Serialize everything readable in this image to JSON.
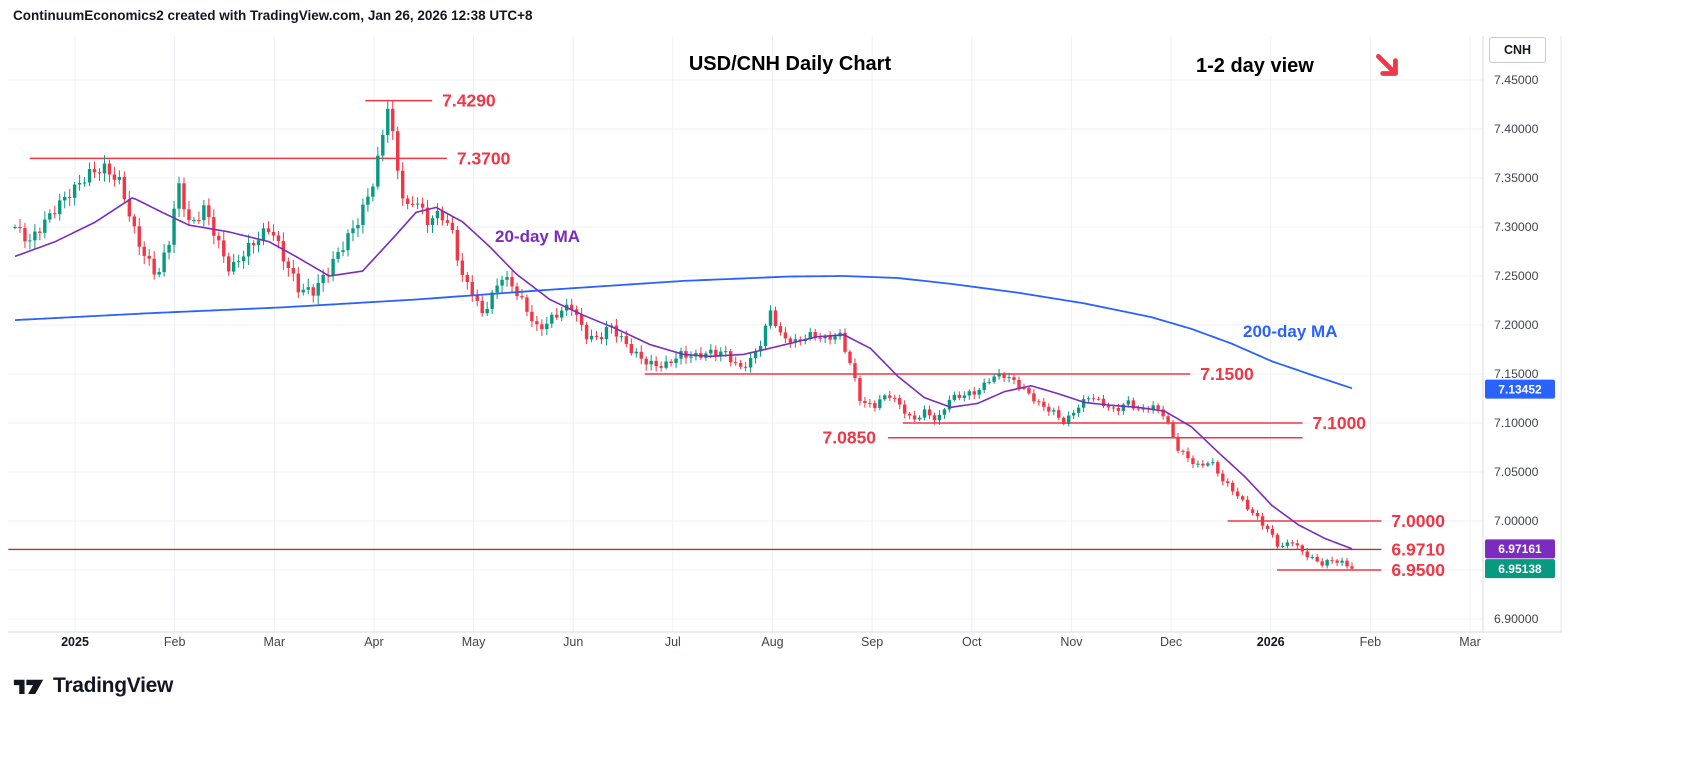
{
  "header": {
    "attribution": "ContinuumEconomics2 created with TradingView.com, Jan 26, 2026 12:38 UTC+8"
  },
  "chart": {
    "title": "USD/CNH Daily Chart",
    "view_note": "1-2 day view",
    "symbol_button": "CNH",
    "ma20_label": "20-day MA",
    "ma200_label": "200-day MA"
  },
  "footer": {
    "logo_text": "TradingView"
  },
  "price_scale": {
    "ticks": [
      "7.45000",
      "7.40000",
      "7.35000",
      "7.30000",
      "7.25000",
      "7.20000",
      "7.15000",
      "7.10000",
      "7.05000",
      "7.00000",
      "6.95000",
      "6.90000"
    ],
    "badges": [
      {
        "label": "7.13452",
        "price": 7.13452,
        "color": "#2962ff"
      },
      {
        "label": "6.97161",
        "price": 6.97161,
        "color": "#7b2cbf"
      },
      {
        "label": "6.95138",
        "price": 6.95138,
        "color": "#089981"
      }
    ]
  },
  "chart_data": {
    "type": "candlestick",
    "symbol": "USD/CNH",
    "timeframe": "Daily",
    "title": "USD/CNH Daily Chart",
    "x_axis_labels": [
      "2025",
      "Feb",
      "Mar",
      "Apr",
      "May",
      "Jun",
      "Jul",
      "Aug",
      "Sep",
      "Oct",
      "Nov",
      "Dec",
      "2026",
      "Feb",
      "Mar"
    ],
    "y_axis": {
      "min": 6.9,
      "max": 7.45,
      "tick_step": 0.05
    },
    "last_close": 6.95138,
    "ma20_value": 6.97161,
    "ma200_value": 7.13452,
    "colors": {
      "up": "#089981",
      "down": "#f23645",
      "ma20": "#7b2cbf",
      "ma200": "#2962ff",
      "level": "#f23645",
      "level_dark": "#a33b3b",
      "grid": "#eef0f5",
      "axis_text": "#40444d"
    },
    "candles": {
      "count": 270,
      "max_high": 7.429,
      "min_low": 6.9462,
      "close_anchors": [
        [
          0.0,
          7.3
        ],
        [
          0.011,
          7.285
        ],
        [
          0.022,
          7.305
        ],
        [
          0.034,
          7.325
        ],
        [
          0.045,
          7.34
        ],
        [
          0.056,
          7.355
        ],
        [
          0.067,
          7.36
        ],
        [
          0.079,
          7.345
        ],
        [
          0.088,
          7.3
        ],
        [
          0.097,
          7.27
        ],
        [
          0.107,
          7.25
        ],
        [
          0.116,
          7.29
        ],
        [
          0.122,
          7.345
        ],
        [
          0.131,
          7.3
        ],
        [
          0.142,
          7.32
        ],
        [
          0.153,
          7.28
        ],
        [
          0.161,
          7.255
        ],
        [
          0.172,
          7.275
        ],
        [
          0.183,
          7.29
        ],
        [
          0.191,
          7.3
        ],
        [
          0.202,
          7.265
        ],
        [
          0.213,
          7.235
        ],
        [
          0.224,
          7.235
        ],
        [
          0.236,
          7.26
        ],
        [
          0.247,
          7.285
        ],
        [
          0.258,
          7.31
        ],
        [
          0.269,
          7.35
        ],
        [
          0.279,
          7.425
        ],
        [
          0.285,
          7.37
        ],
        [
          0.292,
          7.315
        ],
        [
          0.299,
          7.33
        ],
        [
          0.309,
          7.305
        ],
        [
          0.318,
          7.315
        ],
        [
          0.327,
          7.295
        ],
        [
          0.334,
          7.25
        ],
        [
          0.342,
          7.235
        ],
        [
          0.349,
          7.21
        ],
        [
          0.357,
          7.23
        ],
        [
          0.364,
          7.25
        ],
        [
          0.372,
          7.24
        ],
        [
          0.381,
          7.22
        ],
        [
          0.391,
          7.195
        ],
        [
          0.4,
          7.205
        ],
        [
          0.409,
          7.215
        ],
        [
          0.417,
          7.22
        ],
        [
          0.426,
          7.19
        ],
        [
          0.436,
          7.185
        ],
        [
          0.445,
          7.2
        ],
        [
          0.454,
          7.185
        ],
        [
          0.464,
          7.17
        ],
        [
          0.475,
          7.16
        ],
        [
          0.486,
          7.158
        ],
        [
          0.497,
          7.17
        ],
        [
          0.509,
          7.168
        ],
        [
          0.52,
          7.172
        ],
        [
          0.531,
          7.172
        ],
        [
          0.542,
          7.155
        ],
        [
          0.551,
          7.165
        ],
        [
          0.559,
          7.185
        ],
        [
          0.565,
          7.215
        ],
        [
          0.572,
          7.19
        ],
        [
          0.583,
          7.182
        ],
        [
          0.595,
          7.19
        ],
        [
          0.606,
          7.186
        ],
        [
          0.617,
          7.19
        ],
        [
          0.626,
          7.155
        ],
        [
          0.633,
          7.12
        ],
        [
          0.643,
          7.118
        ],
        [
          0.653,
          7.13
        ],
        [
          0.662,
          7.118
        ],
        [
          0.671,
          7.102
        ],
        [
          0.681,
          7.112
        ],
        [
          0.69,
          7.102
        ],
        [
          0.699,
          7.125
        ],
        [
          0.708,
          7.128
        ],
        [
          0.72,
          7.132
        ],
        [
          0.729,
          7.145
        ],
        [
          0.738,
          7.15
        ],
        [
          0.748,
          7.142
        ],
        [
          0.758,
          7.13
        ],
        [
          0.767,
          7.118
        ],
        [
          0.776,
          7.112
        ],
        [
          0.785,
          7.1
        ],
        [
          0.794,
          7.115
        ],
        [
          0.804,
          7.128
        ],
        [
          0.813,
          7.12
        ],
        [
          0.823,
          7.112
        ],
        [
          0.832,
          7.122
        ],
        [
          0.841,
          7.112
        ],
        [
          0.85,
          7.118
        ],
        [
          0.86,
          7.108
        ],
        [
          0.869,
          7.075
        ],
        [
          0.879,
          7.062
        ],
        [
          0.886,
          7.055
        ],
        [
          0.894,
          7.062
        ],
        [
          0.903,
          7.042
        ],
        [
          0.912,
          7.03
        ],
        [
          0.921,
          7.015
        ],
        [
          0.93,
          7.002
        ],
        [
          0.939,
          6.988
        ],
        [
          0.946,
          6.972
        ],
        [
          0.955,
          6.98
        ],
        [
          0.963,
          6.968
        ],
        [
          0.97,
          6.962
        ],
        [
          0.977,
          6.956
        ],
        [
          0.985,
          6.96
        ],
        [
          0.992,
          6.958
        ],
        [
          1.0,
          6.9514
        ]
      ],
      "volatility_anchors": [
        [
          0,
          0.012
        ],
        [
          0.28,
          0.013
        ],
        [
          0.33,
          0.011
        ],
        [
          0.5,
          0.009
        ],
        [
          0.62,
          0.007
        ],
        [
          0.75,
          0.0065
        ],
        [
          0.87,
          0.006
        ],
        [
          1,
          0.005
        ]
      ]
    },
    "ma20": {
      "name": "20-day MA",
      "current": 6.97161,
      "anchors": [
        [
          0,
          7.27
        ],
        [
          0.03,
          7.285
        ],
        [
          0.06,
          7.305
        ],
        [
          0.088,
          7.33
        ],
        [
          0.11,
          7.315
        ],
        [
          0.13,
          7.302
        ],
        [
          0.16,
          7.295
        ],
        [
          0.19,
          7.285
        ],
        [
          0.21,
          7.27
        ],
        [
          0.235,
          7.25
        ],
        [
          0.26,
          7.255
        ],
        [
          0.285,
          7.292
        ],
        [
          0.3,
          7.315
        ],
        [
          0.315,
          7.32
        ],
        [
          0.335,
          7.305
        ],
        [
          0.355,
          7.28
        ],
        [
          0.375,
          7.252
        ],
        [
          0.4,
          7.226
        ],
        [
          0.425,
          7.21
        ],
        [
          0.45,
          7.196
        ],
        [
          0.475,
          7.18
        ],
        [
          0.5,
          7.17
        ],
        [
          0.52,
          7.168
        ],
        [
          0.545,
          7.17
        ],
        [
          0.57,
          7.178
        ],
        [
          0.6,
          7.188
        ],
        [
          0.62,
          7.19
        ],
        [
          0.64,
          7.176
        ],
        [
          0.66,
          7.148
        ],
        [
          0.68,
          7.126
        ],
        [
          0.7,
          7.116
        ],
        [
          0.72,
          7.12
        ],
        [
          0.74,
          7.132
        ],
        [
          0.76,
          7.138
        ],
        [
          0.78,
          7.13
        ],
        [
          0.8,
          7.121
        ],
        [
          0.82,
          7.118
        ],
        [
          0.84,
          7.116
        ],
        [
          0.86,
          7.112
        ],
        [
          0.88,
          7.096
        ],
        [
          0.9,
          7.07
        ],
        [
          0.92,
          7.045
        ],
        [
          0.94,
          7.016
        ],
        [
          0.96,
          6.996
        ],
        [
          0.98,
          6.982
        ],
        [
          1.0,
          6.9716
        ]
      ]
    },
    "ma200": {
      "name": "200-day MA",
      "current": 7.13452,
      "anchors": [
        [
          0,
          7.205
        ],
        [
          0.1,
          7.212
        ],
        [
          0.2,
          7.218
        ],
        [
          0.3,
          7.226
        ],
        [
          0.4,
          7.236
        ],
        [
          0.5,
          7.245
        ],
        [
          0.58,
          7.2495
        ],
        [
          0.62,
          7.25
        ],
        [
          0.66,
          7.248
        ],
        [
          0.7,
          7.242
        ],
        [
          0.75,
          7.233
        ],
        [
          0.8,
          7.222
        ],
        [
          0.85,
          7.208
        ],
        [
          0.88,
          7.196
        ],
        [
          0.91,
          7.181
        ],
        [
          0.94,
          7.163
        ],
        [
          0.97,
          7.149
        ],
        [
          1.002,
          7.1345
        ]
      ]
    },
    "levels": [
      {
        "label": "7.4290",
        "price": 7.429,
        "x1": 0.262,
        "x2": 0.312,
        "label_side": "right",
        "dark": false
      },
      {
        "label": "7.3700",
        "price": 7.37,
        "x1": 0.011,
        "x2": 0.323,
        "label_side": "right",
        "dark": false
      },
      {
        "label": "7.1500",
        "price": 7.15,
        "x1": 0.471,
        "x2": 0.879,
        "label_side": "right",
        "dark": false
      },
      {
        "label": "7.1000",
        "price": 7.1,
        "x1": 0.664,
        "x2": 0.963,
        "label_side": "right",
        "dark": false
      },
      {
        "label": "7.0850",
        "price": 7.085,
        "x1": 0.653,
        "x2": 0.963,
        "label_side": "left",
        "dark": false
      },
      {
        "label": "7.0000",
        "price": 7.0,
        "x1": 0.907,
        "x2": 1.022,
        "label_side": "right",
        "dark": false
      },
      {
        "label": "6.9710",
        "price": 6.971,
        "x1": -0.005,
        "x2": 1.022,
        "label_side": "right",
        "dark": true
      },
      {
        "label": "6.9500",
        "price": 6.95,
        "x1": 0.944,
        "x2": 1.022,
        "label_side": "right",
        "dark": false
      }
    ]
  }
}
